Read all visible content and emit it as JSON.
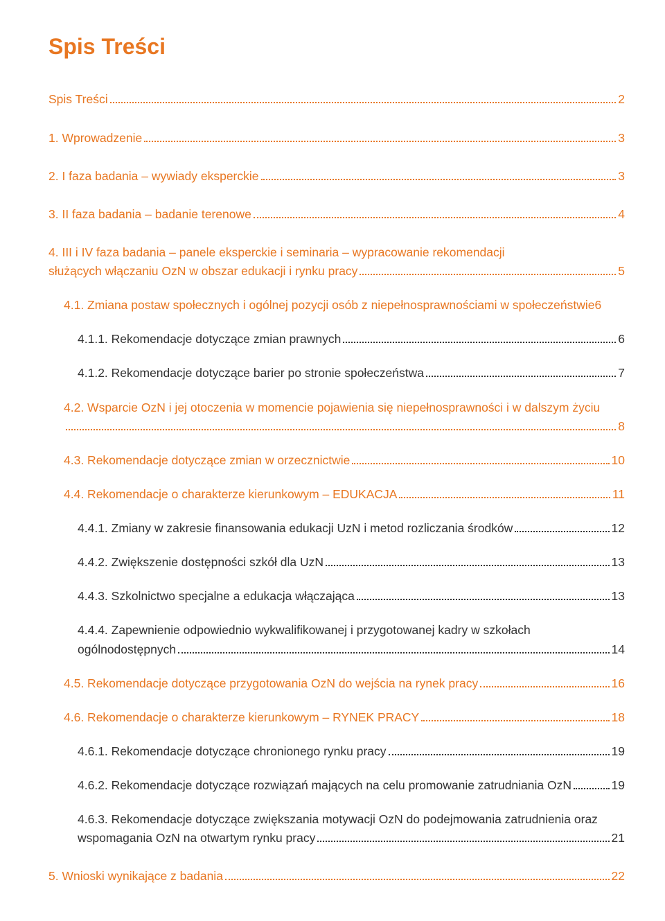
{
  "title": "Spis Treści",
  "colors": {
    "accent": "#e87722",
    "body": "#333333",
    "background": "#ffffff"
  },
  "fonts": {
    "title_size_pt": 24,
    "entry_size_pt": 13
  },
  "entries": [
    {
      "level": 1,
      "label": "Spis Treści",
      "page": "2",
      "gap": "big"
    },
    {
      "level": 1,
      "label": "1. Wprowadzenie",
      "page": "3",
      "gap": "big"
    },
    {
      "level": 1,
      "label": "2. I faza badania – wywiady eksperckie",
      "page": "3",
      "gap": "big"
    },
    {
      "level": 1,
      "label": "3. II faza badania – badanie terenowe",
      "page": "4",
      "gap": "big"
    },
    {
      "level": 1,
      "label_top": "4. III i IV faza badania – panele eksperckie i seminaria – wypracowanie rekomendacji",
      "label_bottom": "służących włączaniu OzN w obszar edukacji i rynku pracy",
      "page": "5",
      "gap": "med",
      "multiline": true
    },
    {
      "level": 2,
      "label_top": "4.1. Zmiana postaw społecznych i ogólnej pozycji osób z niepełnosprawnościami w społeczeństwie",
      "label_bottom": "",
      "page": "6",
      "gap": "med",
      "multiline": true,
      "page_inline": true
    },
    {
      "level": 3,
      "label": "4.1.1. Rekomendacje dotyczące zmian prawnych",
      "page": "6",
      "gap": "med"
    },
    {
      "level": 3,
      "label": "4.1.2. Rekomendacje dotyczące barier po stronie społeczeństwa",
      "page": "7",
      "gap": "med"
    },
    {
      "level": 2,
      "label_top": "4.2. Wsparcie OzN i jej otoczenia w momencie pojawienia się niepełnosprawności i w dalszym życiu",
      "label_bottom": "",
      "page": "8",
      "gap": "med",
      "multiline": true
    },
    {
      "level": 2,
      "label": "4.3. Rekomendacje dotyczące zmian w orzecznictwie",
      "page": "10",
      "gap": "med"
    },
    {
      "level": 2,
      "label": "4.4. Rekomendacje o charakterze kierunkowym – EDUKACJA",
      "page": "11",
      "gap": "med"
    },
    {
      "level": 3,
      "label": "4.4.1. Zmiany w zakresie finansowania edukacji UzN i metod rozliczania środków",
      "page": "12",
      "gap": "med"
    },
    {
      "level": 3,
      "label": "4.4.2. Zwiększenie dostępności szkół dla UzN",
      "page": "13",
      "gap": "med"
    },
    {
      "level": 3,
      "label": "4.4.3. Szkolnictwo specjalne a edukacja włączająca",
      "page": "13",
      "gap": "med"
    },
    {
      "level": 3,
      "label_top": "4.4.4.  Zapewnienie  odpowiednio  wykwalifikowanej  i  przygotowanej  kadry  w  szkołach",
      "label_bottom": "ogólnodostępnych",
      "page": "14",
      "gap": "med",
      "multiline": true,
      "justify": true
    },
    {
      "level": 2,
      "label": "4.5. Rekomendacje dotyczące przygotowania OzN do wejścia na rynek pracy",
      "page": "16",
      "gap": "med"
    },
    {
      "level": 2,
      "label": "4.6. Rekomendacje o charakterze kierunkowym – RYNEK PRACY",
      "page": "18",
      "gap": "med"
    },
    {
      "level": 3,
      "label": "4.6.1. Rekomendacje dotyczące chronionego rynku pracy",
      "page": "19",
      "gap": "med"
    },
    {
      "level": 3,
      "label": "4.6.2. Rekomendacje dotyczące rozwiązań mających na celu promowanie zatrudniania OzN",
      "page": "19",
      "gap": "med"
    },
    {
      "level": 3,
      "label_top": "4.6.3. Rekomendacje dotyczące zwiększania motywacji OzN do podejmowania zatrudnienia oraz",
      "label_bottom": "wspomagania OzN na otwartym rynku pracy",
      "page": "21",
      "gap": "big",
      "multiline": true,
      "justify": true
    },
    {
      "level": 1,
      "label": "5. Wnioski wynikające z badania",
      "page": "22",
      "gap": "none"
    }
  ]
}
